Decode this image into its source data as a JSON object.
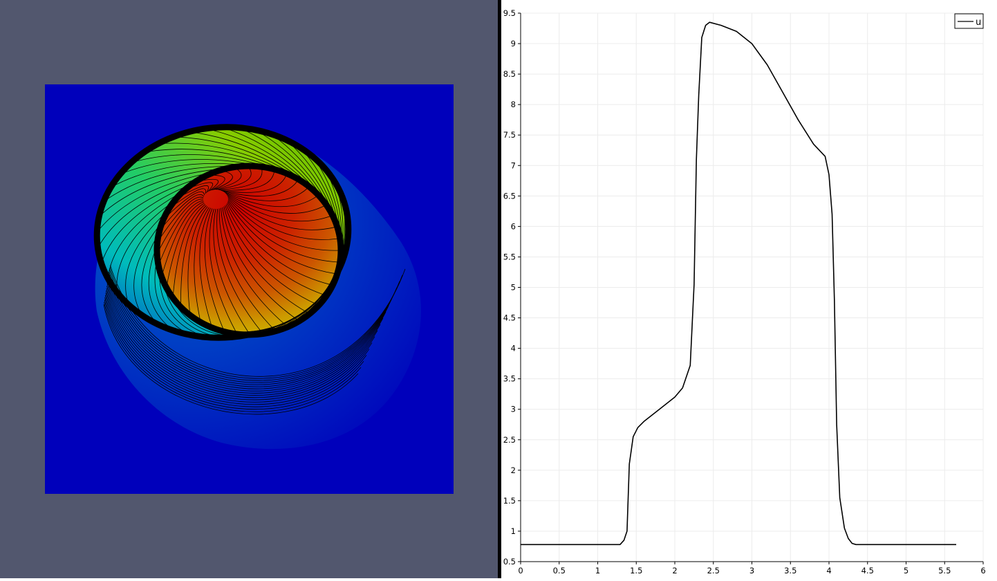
{
  "render_view": {
    "background_color": "#52576e",
    "domain_color": "#0000bb",
    "colormap": "jet (blue-to-red)",
    "contour_color": "#000000"
  },
  "chart_data": {
    "type": "line",
    "title": "",
    "xlabel": "",
    "ylabel": "",
    "xlim": [
      0,
      6
    ],
    "ylim": [
      0.5,
      9.5
    ],
    "x_ticks": [
      0,
      0.5,
      1,
      1.5,
      2,
      2.5,
      3,
      3.5,
      4,
      4.5,
      5,
      5.5,
      6
    ],
    "y_ticks": [
      0.5,
      1,
      1.5,
      2,
      2.5,
      3,
      3.5,
      4,
      4.5,
      5,
      5.5,
      6,
      6.5,
      7,
      7.5,
      8,
      8.5,
      9,
      9.5
    ],
    "grid": true,
    "legend_position": "top-right",
    "series": [
      {
        "name": "u",
        "color": "#000000",
        "x": [
          0,
          1.0,
          1.29,
          1.34,
          1.38,
          1.41,
          1.46,
          1.52,
          1.6,
          1.8,
          2.0,
          2.1,
          2.2,
          2.25,
          2.28,
          2.31,
          2.35,
          2.4,
          2.45,
          2.6,
          2.8,
          3.0,
          3.2,
          3.4,
          3.6,
          3.8,
          3.95,
          4.0,
          4.04,
          4.07,
          4.1,
          4.14,
          4.2,
          4.25,
          4.3,
          4.35,
          4.4,
          4.5,
          5.0,
          5.65
        ],
        "y": [
          0.78,
          0.78,
          0.78,
          0.85,
          1.0,
          2.1,
          2.55,
          2.7,
          2.8,
          3.0,
          3.2,
          3.35,
          3.72,
          5.05,
          7.1,
          8.15,
          9.1,
          9.3,
          9.35,
          9.3,
          9.2,
          9.0,
          8.65,
          8.2,
          7.75,
          7.35,
          7.15,
          6.85,
          6.2,
          4.8,
          2.75,
          1.55,
          1.05,
          0.88,
          0.8,
          0.78,
          0.78,
          0.78,
          0.78,
          0.78
        ]
      }
    ]
  }
}
